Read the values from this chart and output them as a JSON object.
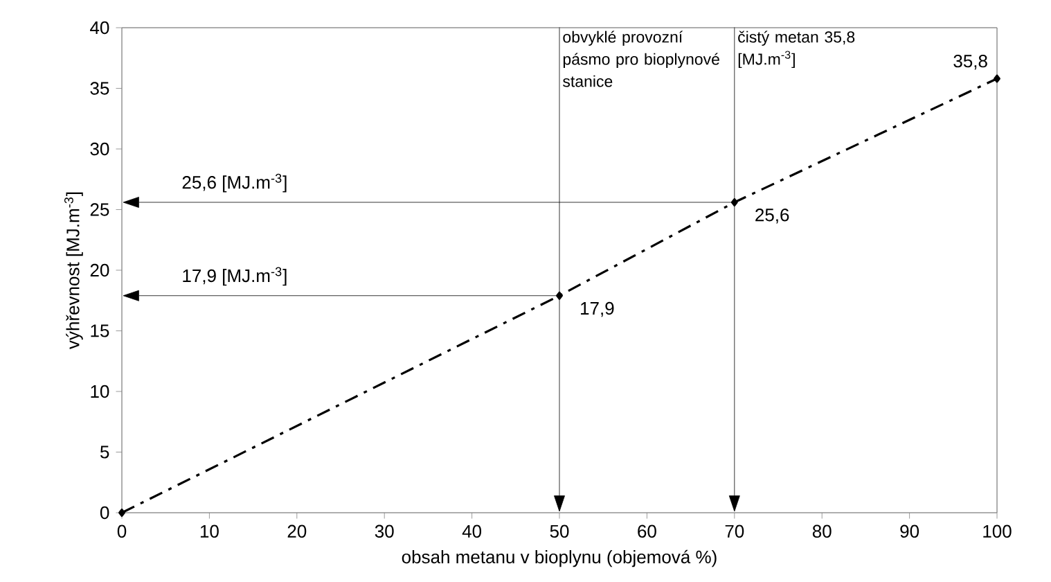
{
  "chart_data": {
    "type": "line",
    "xlabel": "obsah metanu v bioplynu (objemová %)",
    "ylabel": "výhřevnost [MJ.m$^{-3}$]",
    "x": [
      0,
      50,
      70,
      100
    ],
    "series": [
      {
        "color": "#000000",
        "values": [
          0,
          17.9,
          25.6,
          35.8
        ],
        "value_labels": [
          null,
          "17,9",
          "25,6",
          "35,8"
        ]
      }
    ],
    "marker": "diamond",
    "line_style": "dashdot",
    "xlim": [
      0,
      100
    ],
    "xticks": [
      0,
      10,
      20,
      30,
      40,
      50,
      60,
      70,
      80,
      90,
      100
    ],
    "ylim": [
      0,
      40
    ],
    "yticks": [
      0,
      5,
      10,
      15,
      20,
      25,
      30,
      35,
      40
    ],
    "ref_lines": [
      {
        "axis": "x",
        "value": 50,
        "label": "obvyklé provozní pásmo pro bioplynové stanice",
        "color": "#000000"
      },
      {
        "axis": "x",
        "value": 70,
        "label": "čistý metan 35,8 [MJ.m$^{-3}$]",
        "color": "#000000"
      },
      {
        "axis": "y",
        "value": 25.6,
        "label": "25,6 [MJ.m$^{-3}$]",
        "color": "#000000"
      },
      {
        "axis": "y",
        "value": 17.9,
        "label": "17,9 [MJ.m$^{-3}$]",
        "color": "#000000"
      }
    ],
    "grid": false
  }
}
